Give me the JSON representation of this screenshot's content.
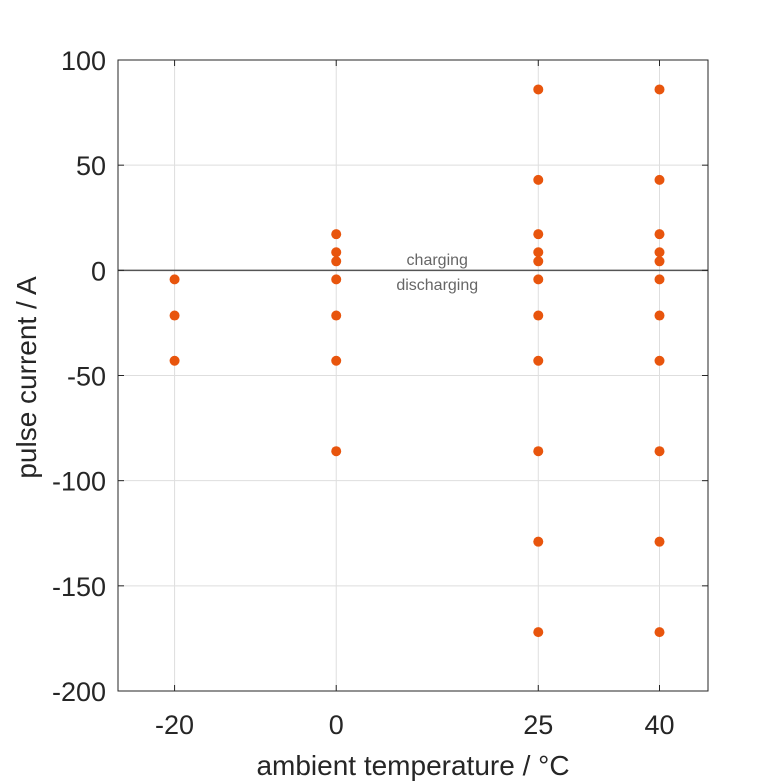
{
  "chart_data": {
    "type": "scatter",
    "xlabel": "ambient temperature / °C",
    "ylabel": "pulse current / A",
    "xlim": [
      -27,
      46
    ],
    "ylim": [
      -200,
      100
    ],
    "x_ticks": [
      -20,
      0,
      25,
      40
    ],
    "x_tick_labels": [
      "-20",
      "0",
      "25",
      "40"
    ],
    "y_ticks": [
      100,
      50,
      0,
      -50,
      -100,
      -150,
      -200
    ],
    "y_tick_labels": [
      "100",
      "50",
      "0",
      "-50",
      "-100",
      "-150",
      "-200"
    ],
    "grid": true,
    "marker_color": "#e8550d",
    "zero_line": 0,
    "annotations": [
      {
        "text": "charging",
        "x": 12.5,
        "y": 5
      },
      {
        "text": "discharging",
        "x": 12.5,
        "y": -7
      }
    ],
    "points": [
      {
        "x": -20,
        "y": -4.3
      },
      {
        "x": -20,
        "y": -21.5
      },
      {
        "x": -20,
        "y": -43
      },
      {
        "x": 0,
        "y": 17.2
      },
      {
        "x": 0,
        "y": 8.6
      },
      {
        "x": 0,
        "y": 4.3
      },
      {
        "x": 0,
        "y": -4.3
      },
      {
        "x": 0,
        "y": -21.5
      },
      {
        "x": 0,
        "y": -43
      },
      {
        "x": 0,
        "y": -86
      },
      {
        "x": 25,
        "y": 86
      },
      {
        "x": 25,
        "y": 43
      },
      {
        "x": 25,
        "y": 17.2
      },
      {
        "x": 25,
        "y": 8.6
      },
      {
        "x": 25,
        "y": 4.3
      },
      {
        "x": 25,
        "y": -4.3
      },
      {
        "x": 25,
        "y": -21.5
      },
      {
        "x": 25,
        "y": -43
      },
      {
        "x": 25,
        "y": -86
      },
      {
        "x": 25,
        "y": -129
      },
      {
        "x": 25,
        "y": -172
      },
      {
        "x": 40,
        "y": 86
      },
      {
        "x": 40,
        "y": 43
      },
      {
        "x": 40,
        "y": 17.2
      },
      {
        "x": 40,
        "y": 8.6
      },
      {
        "x": 40,
        "y": 4.3
      },
      {
        "x": 40,
        "y": -4.3
      },
      {
        "x": 40,
        "y": -21.5
      },
      {
        "x": 40,
        "y": -43
      },
      {
        "x": 40,
        "y": -86
      },
      {
        "x": 40,
        "y": -129
      },
      {
        "x": 40,
        "y": -172
      }
    ]
  }
}
